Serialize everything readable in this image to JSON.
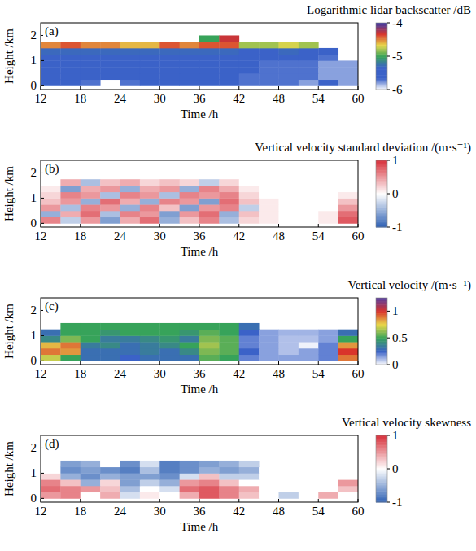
{
  "chart_data": [
    {
      "type": "heatmap",
      "title": "Logarithmic lidar backscatter /dB",
      "panel_label": "(a)",
      "x_label": "Time /h",
      "y_label": "Height /km",
      "xlim": [
        12,
        60
      ],
      "xticks": [
        12,
        18,
        24,
        30,
        36,
        42,
        48,
        54,
        60
      ],
      "ylim": [
        -0.15,
        2.5
      ],
      "yticks": [
        0,
        1,
        2
      ],
      "x": [
        13.5,
        16.5,
        19.5,
        22.5,
        25.5,
        28.5,
        31.5,
        34.5,
        37.5,
        40.5,
        43.5,
        46.5,
        49.5,
        52.5,
        55.5,
        58.5
      ],
      "y": [
        0.125,
        0.375,
        0.625,
        0.875,
        1.125,
        1.375,
        1.625,
        1.875
      ],
      "cells": [
        [
          -5.6,
          -5.6,
          -5.7,
          null,
          -5.7,
          -5.6,
          -5.6,
          -5.6,
          -5.6,
          -5.6,
          -5.7,
          -5.7,
          -5.7,
          -5.8,
          -5.6,
          -5.8
        ],
        [
          -5.6,
          -5.6,
          -5.6,
          -5.6,
          -5.6,
          -5.6,
          -5.5,
          -5.6,
          -5.6,
          -5.6,
          -5.7,
          -5.7,
          -5.7,
          -5.7,
          -5.8,
          -5.8
        ],
        [
          -5.6,
          -5.6,
          -5.6,
          -5.6,
          -5.6,
          -5.6,
          -5.5,
          -5.5,
          -5.6,
          -5.6,
          -5.6,
          -5.7,
          -5.7,
          -5.7,
          -5.8,
          -5.8
        ],
        [
          -5.5,
          -5.5,
          -5.6,
          -5.6,
          -5.6,
          -5.6,
          -5.5,
          -5.5,
          -5.5,
          -5.6,
          -5.6,
          -5.7,
          -5.7,
          -5.7,
          -5.8,
          -5.8
        ],
        [
          -5.5,
          -5.5,
          -5.5,
          -5.5,
          -5.5,
          -5.5,
          -5.4,
          -5.4,
          -5.4,
          -5.5,
          -5.6,
          -5.6,
          -5.6,
          -5.6,
          -5.7,
          null
        ],
        [
          -5.3,
          -5.3,
          -5.3,
          -5.3,
          -5.3,
          -5.3,
          -5.3,
          -5.3,
          -5.3,
          -5.3,
          -5.4,
          -5.4,
          -5.3,
          -5.4,
          -5.6,
          null
        ],
        [
          -4.5,
          -4.4,
          -4.5,
          -4.5,
          -4.6,
          -4.6,
          -4.4,
          -4.5,
          -4.4,
          -4.4,
          -4.8,
          -4.8,
          -4.7,
          -4.8,
          null,
          null
        ],
        [
          null,
          null,
          null,
          null,
          null,
          null,
          null,
          null,
          -5.0,
          -4.3,
          null,
          null,
          null,
          null,
          null,
          null
        ]
      ],
      "colorbar": {
        "range": [
          -6,
          -4
        ],
        "ticks": [
          -6,
          -5,
          -4
        ],
        "colors": [
          "#ffffff",
          "#3b62c8",
          "#3b62c8",
          "#37a35a",
          "#e8d84a",
          "#d9342b",
          "#3c3ca8"
        ]
      }
    },
    {
      "type": "heatmap",
      "title": "Vertical velocity standard deviation /(m·s⁻¹)",
      "panel_label": "(b)",
      "x_label": "Time /h",
      "y_label": "Height /km",
      "xlim": [
        12,
        60
      ],
      "xticks": [
        12,
        18,
        24,
        30,
        36,
        42,
        48,
        54,
        60
      ],
      "ylim": [
        -0.15,
        2.5
      ],
      "yticks": [
        0,
        1,
        2
      ],
      "x": [
        13.5,
        16.5,
        19.5,
        22.5,
        25.5,
        28.5,
        31.5,
        34.5,
        37.5,
        40.5,
        43.5,
        46.5,
        49.5,
        52.5,
        55.5,
        58.5
      ],
      "y": [
        0.125,
        0.375,
        0.625,
        0.875,
        1.125,
        1.375,
        1.625,
        1.875
      ],
      "cells": [
        [
          0.6,
          -0.3,
          0.5,
          -0.6,
          0.4,
          0.7,
          -0.5,
          0.3,
          0.6,
          -0.4,
          0.2,
          0.1,
          0.0,
          0.0,
          0.1,
          0.8
        ],
        [
          -0.5,
          0.4,
          0.7,
          -0.4,
          0.6,
          0.5,
          -0.6,
          0.5,
          0.7,
          -0.5,
          0.3,
          0.1,
          0.0,
          0.0,
          0.1,
          0.7
        ],
        [
          0.5,
          -0.4,
          0.6,
          0.5,
          -0.5,
          0.6,
          0.3,
          -0.6,
          0.5,
          0.6,
          -0.3,
          0.1,
          0.0,
          0.0,
          0.0,
          0.5
        ],
        [
          0.3,
          0.5,
          -0.5,
          0.7,
          0.4,
          -0.5,
          0.6,
          0.5,
          -0.6,
          0.7,
          0.3,
          0.1,
          0.0,
          0.0,
          0.0,
          0.3
        ],
        [
          0.2,
          0.6,
          0.5,
          -0.4,
          0.6,
          0.5,
          -0.4,
          0.6,
          0.5,
          0.6,
          0.2,
          0.0,
          0.0,
          0.0,
          0.0,
          0.1
        ],
        [
          0.1,
          -0.6,
          0.4,
          0.5,
          -0.5,
          0.4,
          0.5,
          -0.5,
          0.6,
          0.4,
          0.1,
          0.0,
          0.0,
          0.0,
          0.0,
          0.0
        ],
        [
          0.0,
          0.4,
          -0.4,
          0.3,
          0.4,
          0.2,
          0.3,
          0.2,
          -0.3,
          0.2,
          0.0,
          0.0,
          0.0,
          0.0,
          0.0,
          0.0
        ],
        [
          null,
          null,
          null,
          null,
          null,
          null,
          null,
          null,
          null,
          null,
          null,
          null,
          null,
          null,
          null,
          null
        ]
      ],
      "colorbar": {
        "range": [
          -1,
          1
        ],
        "ticks": [
          -1,
          0,
          1
        ],
        "colors": [
          "#2c5fb3",
          "#ffffff",
          "#d7303a"
        ]
      }
    },
    {
      "type": "heatmap",
      "title": "Vertical velocity /(m·s⁻¹)",
      "panel_label": "(c)",
      "x_label": "Time /h",
      "y_label": "Height /km",
      "xlim": [
        12,
        60
      ],
      "xticks": [
        12,
        18,
        24,
        30,
        36,
        42,
        48,
        54,
        60
      ],
      "ylim": [
        -0.15,
        2.5
      ],
      "yticks": [
        0,
        1,
        2
      ],
      "x": [
        13.5,
        16.5,
        19.5,
        22.5,
        25.5,
        28.5,
        31.5,
        34.5,
        37.5,
        40.5,
        43.5,
        46.5,
        49.5,
        52.5,
        55.5,
        58.5
      ],
      "y": [
        0.125,
        0.375,
        0.625,
        0.875,
        1.125,
        1.375,
        1.625,
        1.875
      ],
      "cells": [
        [
          0.7,
          0.5,
          0.3,
          0.3,
          0.25,
          0.3,
          0.3,
          0.3,
          0.55,
          0.5,
          0.2,
          0.15,
          0.15,
          0.15,
          0.2,
          0.9
        ],
        [
          0.9,
          0.85,
          0.3,
          0.3,
          0.3,
          0.35,
          0.3,
          0.4,
          0.6,
          0.55,
          0.25,
          0.15,
          0.1,
          0.15,
          0.2,
          1.0
        ],
        [
          0.8,
          0.9,
          0.35,
          0.4,
          0.3,
          0.35,
          0.4,
          0.5,
          0.65,
          0.55,
          0.2,
          0.15,
          0.1,
          0.02,
          0.2,
          0.85
        ],
        [
          0.4,
          0.6,
          0.5,
          0.35,
          0.35,
          0.4,
          0.45,
          0.35,
          0.6,
          0.55,
          0.2,
          0.15,
          0.1,
          0.1,
          0.15,
          0.5
        ],
        [
          0.3,
          0.5,
          0.5,
          0.45,
          0.5,
          0.5,
          0.5,
          0.45,
          0.55,
          0.5,
          0.25,
          0.15,
          0.12,
          0.12,
          0.15,
          0.3
        ],
        [
          null,
          0.5,
          0.5,
          0.5,
          0.5,
          0.5,
          0.5,
          0.5,
          0.5,
          0.5,
          0.3,
          null,
          null,
          null,
          null,
          null
        ],
        [
          null,
          null,
          null,
          null,
          null,
          null,
          null,
          null,
          null,
          null,
          null,
          null,
          null,
          null,
          null,
          null
        ],
        [
          null,
          null,
          null,
          null,
          null,
          null,
          null,
          null,
          null,
          null,
          null,
          null,
          null,
          null,
          null,
          null
        ]
      ],
      "colorbar": {
        "range": [
          0,
          1.25
        ],
        "ticks": [
          0,
          0.5,
          1
        ],
        "colors": [
          "#ffffff",
          "#3b62c8",
          "#37a35a",
          "#e8d84a",
          "#d9342b",
          "#5a3c9c"
        ]
      }
    },
    {
      "type": "heatmap",
      "title": "Vertical velocity skewness",
      "panel_label": "(d)",
      "x_label": "Time /h",
      "y_label": "Height /km",
      "xlim": [
        12,
        60
      ],
      "xticks": [
        12,
        18,
        24,
        30,
        36,
        42,
        48,
        54,
        60
      ],
      "ylim": [
        -0.15,
        2.5
      ],
      "yticks": [
        0,
        1,
        2
      ],
      "x": [
        13.5,
        16.5,
        19.5,
        22.5,
        25.5,
        28.5,
        31.5,
        34.5,
        37.5,
        40.5,
        43.5,
        46.5,
        49.5,
        52.5,
        55.5,
        58.5
      ],
      "y": [
        0.125,
        0.375,
        0.625,
        0.875,
        1.125,
        1.375,
        1.625,
        1.875
      ],
      "cells": [
        [
          0.5,
          0.6,
          0.0,
          0.4,
          -0.2,
          0.1,
          0.0,
          0.4,
          0.8,
          0.6,
          0.3,
          0.0,
          -0.3,
          0.0,
          0.4,
          0.0
        ],
        [
          0.7,
          0.6,
          0.5,
          0.3,
          -0.4,
          0.0,
          -0.2,
          0.7,
          0.8,
          0.6,
          0.4,
          0.0,
          0.0,
          0.0,
          0.0,
          0.3
        ],
        [
          0.6,
          0.3,
          -0.5,
          0.2,
          -0.6,
          -0.3,
          -0.5,
          0.5,
          0.6,
          0.3,
          0.0,
          0.0,
          0.0,
          0.0,
          0.0,
          0.5
        ],
        [
          0.2,
          -0.5,
          -0.7,
          -0.5,
          -0.6,
          -0.6,
          -0.7,
          -0.2,
          0.3,
          -0.3,
          -0.3,
          0.0,
          0.0,
          0.0,
          0.0,
          0.0
        ],
        [
          0.0,
          -0.7,
          -0.6,
          -0.7,
          -0.8,
          -0.4,
          -0.8,
          -0.7,
          -0.5,
          -0.6,
          -0.5,
          0.0,
          0.0,
          0.0,
          0.0,
          0.0
        ],
        [
          null,
          -0.6,
          -0.5,
          0.0,
          -0.7,
          -0.2,
          -0.8,
          -0.7,
          -0.6,
          -0.5,
          -0.3,
          null,
          null,
          null,
          null,
          null
        ],
        [
          null,
          null,
          null,
          null,
          null,
          null,
          null,
          null,
          null,
          null,
          null,
          null,
          null,
          null,
          null,
          null
        ],
        [
          null,
          null,
          null,
          null,
          null,
          null,
          null,
          null,
          null,
          null,
          null,
          null,
          null,
          null,
          null,
          null
        ]
      ],
      "colorbar": {
        "range": [
          -1,
          1
        ],
        "ticks": [
          -1,
          0,
          1
        ],
        "colors": [
          "#2c5fb3",
          "#ffffff",
          "#d7303a"
        ]
      }
    }
  ]
}
